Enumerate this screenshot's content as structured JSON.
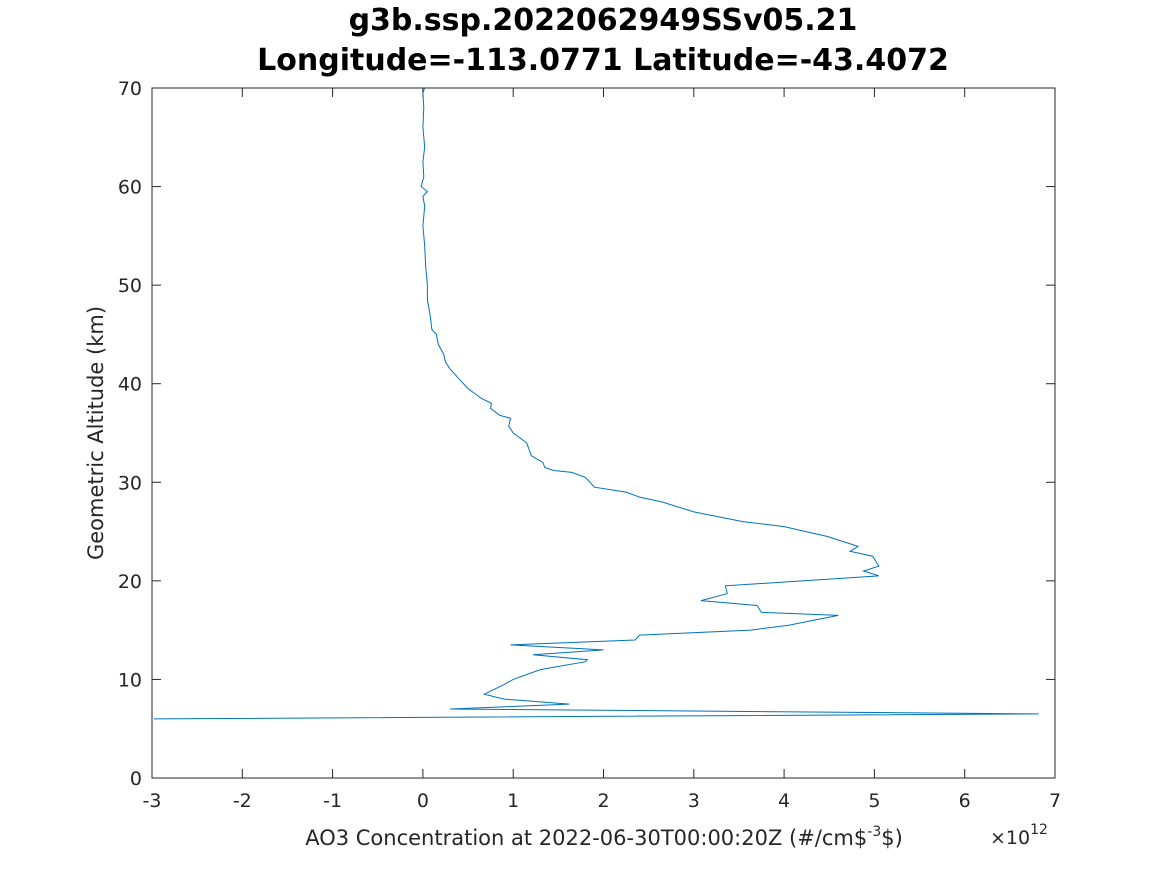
{
  "chart_data": {
    "type": "line",
    "title": "g3b.ssp.2022062949SSv05.21",
    "subtitle": "Longitude=-113.0771 Latitude=-43.4072",
    "xlabel": "AO3 Concentration at 2022-06-30T00:00:20Z (#/cm$",
    "xlabel_sup": "-3",
    "xlabel_end": "$)",
    "ylabel": "Geometric Altitude (km)",
    "x_multiplier_base": "×10",
    "x_multiplier_exp": "12",
    "xlim": [
      -3,
      7
    ],
    "ylim": [
      0,
      70
    ],
    "xticks": [
      "-3",
      "-2",
      "-1",
      "0",
      "1",
      "2",
      "3",
      "4",
      "5",
      "6",
      "7"
    ],
    "yticks": [
      "0",
      "10",
      "20",
      "30",
      "40",
      "50",
      "60",
      "70"
    ],
    "grid": false,
    "line_color": "#0072BD",
    "series": [
      {
        "x_units": "1e12 #/cm^3",
        "y_units": "km",
        "points": [
          [
            -2.98,
            6.0
          ],
          [
            6.82,
            6.5
          ],
          [
            0.3,
            7.0
          ],
          [
            1.62,
            7.5
          ],
          [
            0.9,
            8.0
          ],
          [
            0.68,
            8.5
          ],
          [
            0.9,
            9.5
          ],
          [
            1.0,
            10.0
          ],
          [
            1.3,
            11.0
          ],
          [
            1.8,
            11.8
          ],
          [
            1.82,
            12.0
          ],
          [
            1.22,
            12.5
          ],
          [
            2.0,
            13.0
          ],
          [
            0.97,
            13.5
          ],
          [
            2.35,
            14.0
          ],
          [
            2.4,
            14.5
          ],
          [
            3.63,
            15.0
          ],
          [
            4.05,
            15.5
          ],
          [
            4.6,
            16.5
          ],
          [
            3.75,
            16.8
          ],
          [
            3.7,
            17.5
          ],
          [
            3.08,
            18.0
          ],
          [
            3.37,
            18.7
          ],
          [
            3.35,
            19.5
          ],
          [
            5.05,
            20.5
          ],
          [
            4.88,
            21.0
          ],
          [
            5.05,
            21.5
          ],
          [
            4.98,
            22.5
          ],
          [
            4.73,
            23.0
          ],
          [
            4.82,
            23.5
          ],
          [
            4.48,
            24.5
          ],
          [
            4.0,
            25.5
          ],
          [
            3.55,
            26.0
          ],
          [
            3.0,
            27.0
          ],
          [
            2.65,
            28.0
          ],
          [
            2.4,
            28.5
          ],
          [
            2.25,
            29.0
          ],
          [
            1.9,
            29.5
          ],
          [
            1.8,
            30.5
          ],
          [
            1.65,
            31.0
          ],
          [
            1.45,
            31.2
          ],
          [
            1.35,
            31.5
          ],
          [
            1.33,
            32.0
          ],
          [
            1.2,
            32.7
          ],
          [
            1.15,
            34.0
          ],
          [
            1.0,
            35.0
          ],
          [
            0.95,
            35.7
          ],
          [
            0.97,
            36.5
          ],
          [
            0.85,
            36.8
          ],
          [
            0.75,
            37.5
          ],
          [
            0.76,
            38.0
          ],
          [
            0.65,
            38.5
          ],
          [
            0.5,
            39.5
          ],
          [
            0.4,
            40.5
          ],
          [
            0.3,
            41.5
          ],
          [
            0.25,
            42.2
          ],
          [
            0.23,
            43.0
          ],
          [
            0.17,
            44.0
          ],
          [
            0.15,
            45.0
          ],
          [
            0.1,
            45.5
          ],
          [
            0.08,
            47.0
          ],
          [
            0.05,
            48.5
          ],
          [
            0.05,
            50.0
          ],
          [
            0.03,
            52.0
          ],
          [
            0.02,
            54.0
          ],
          [
            0.0,
            56.0
          ],
          [
            0.02,
            58.0
          ],
          [
            0.0,
            59.0
          ],
          [
            0.05,
            59.5
          ],
          [
            -0.02,
            60.0
          ],
          [
            0.01,
            61.0
          ],
          [
            0.0,
            62.5
          ],
          [
            0.02,
            64.0
          ],
          [
            0.0,
            66.0
          ],
          [
            0.01,
            68.0
          ],
          [
            0.0,
            69.5
          ],
          [
            0.02,
            70.0
          ]
        ]
      }
    ]
  }
}
